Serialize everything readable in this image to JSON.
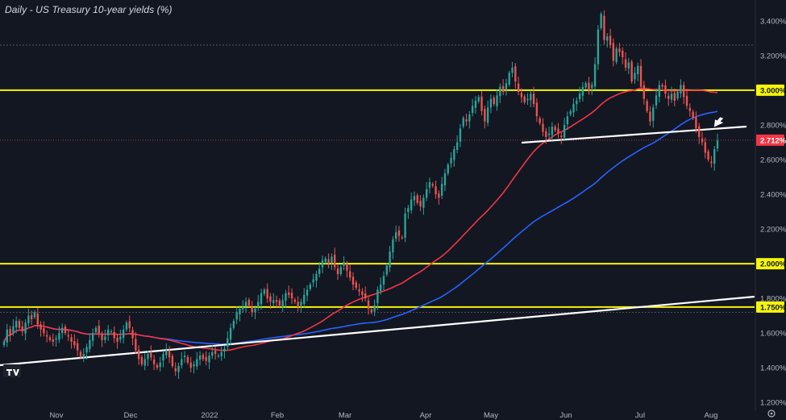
{
  "chart_data": {
    "type": "candlestick",
    "title": "Daily - US Treasury 10-year yields (%)",
    "y_axis": {
      "ylim": [
        1.15,
        3.52
      ],
      "ticks": [
        "3.400%",
        "3.200%",
        "2.800%",
        "2.600%",
        "2.400%",
        "2.200%",
        "1.800%",
        "1.600%",
        "1.400%",
        "1.200%"
      ]
    },
    "x_axis": {
      "labels": [
        "Nov",
        "Dec",
        "2022",
        "Feb",
        "Mar",
        "Apr",
        "May",
        "Jun",
        "Jul",
        "Aug"
      ]
    },
    "horizontal_levels": [
      {
        "value": 3.0,
        "label": "3.000%",
        "color": "#f5f50a"
      },
      {
        "value": 2.0,
        "label": "2.000%",
        "color": "#f5f50a"
      },
      {
        "value": 1.75,
        "label": "1.750%",
        "color": "#f5f50a"
      }
    ],
    "current_price": {
      "value": 2.712,
      "label": "2.712%",
      "color": "#f23645"
    },
    "colors": {
      "up": "#26a69a",
      "down": "#ef5350",
      "ma_fast": "#f23645",
      "ma_slow": "#2962ff",
      "trendline": "#ffffff",
      "level": "#f5f50a",
      "background": "#131722"
    },
    "closes": [
      1.55,
      1.62,
      1.59,
      1.64,
      1.67,
      1.63,
      1.61,
      1.66,
      1.7,
      1.68,
      1.72,
      1.65,
      1.62,
      1.6,
      1.58,
      1.56,
      1.55,
      1.57,
      1.6,
      1.63,
      1.6,
      1.58,
      1.55,
      1.53,
      1.5,
      1.46,
      1.48,
      1.52,
      1.56,
      1.6,
      1.63,
      1.6,
      1.56,
      1.58,
      1.62,
      1.61,
      1.57,
      1.55,
      1.58,
      1.62,
      1.66,
      1.63,
      1.57,
      1.5,
      1.45,
      1.42,
      1.45,
      1.48,
      1.46,
      1.42,
      1.4,
      1.43,
      1.48,
      1.5,
      1.46,
      1.41,
      1.38,
      1.41,
      1.45,
      1.47,
      1.43,
      1.4,
      1.42,
      1.45,
      1.47,
      1.45,
      1.44,
      1.47,
      1.49,
      1.48,
      1.47,
      1.49,
      1.51,
      1.57,
      1.63,
      1.67,
      1.72,
      1.74,
      1.75,
      1.78,
      1.76,
      1.72,
      1.74,
      1.78,
      1.83,
      1.85,
      1.8,
      1.78,
      1.79,
      1.78,
      1.76,
      1.79,
      1.83,
      1.82,
      1.8,
      1.78,
      1.75,
      1.78,
      1.82,
      1.85,
      1.88,
      1.91,
      1.94,
      1.97,
      2.02,
      2.03,
      2.0,
      2.04,
      1.98,
      1.94,
      1.98,
      2.01,
      1.96,
      1.92,
      1.88,
      1.86,
      1.84,
      1.82,
      1.8,
      1.74,
      1.72,
      1.76,
      1.85,
      1.88,
      1.93,
      1.99,
      2.07,
      2.14,
      2.18,
      2.16,
      2.15,
      2.29,
      2.32,
      2.37,
      2.39,
      2.35,
      2.33,
      2.38,
      2.43,
      2.47,
      2.45,
      2.4,
      2.38,
      2.46,
      2.52,
      2.57,
      2.61,
      2.66,
      2.7,
      2.78,
      2.84,
      2.82,
      2.86,
      2.91,
      2.94,
      2.96,
      2.88,
      2.82,
      2.9,
      2.95,
      2.92,
      2.97,
      3.02,
      2.99,
      3.04,
      3.1,
      3.13,
      3.05,
      2.99,
      2.96,
      2.93,
      2.95,
      2.98,
      2.92,
      2.85,
      2.81,
      2.76,
      2.73,
      2.75,
      2.79,
      2.77,
      2.75,
      2.73,
      2.8,
      2.85,
      2.88,
      2.92,
      2.94,
      2.98,
      3.02,
      3.04,
      3.0,
      3.03,
      3.15,
      3.35,
      3.44,
      3.29,
      3.31,
      3.26,
      3.17,
      3.24,
      3.22,
      3.19,
      3.13,
      3.16,
      3.05,
      3.1,
      3.14,
      3.02,
      2.95,
      2.88,
      2.82,
      2.9,
      2.97,
      3.03,
      3.02,
      2.98,
      2.95,
      2.98,
      2.94,
      2.99,
      3.03,
      2.96,
      2.91,
      2.88,
      2.84,
      2.78,
      2.73,
      2.7,
      2.64,
      2.6,
      2.58,
      2.66,
      2.71
    ]
  },
  "annotations": {
    "trend_arrow": "arrow-icon",
    "logo": "tradingview-logo"
  }
}
